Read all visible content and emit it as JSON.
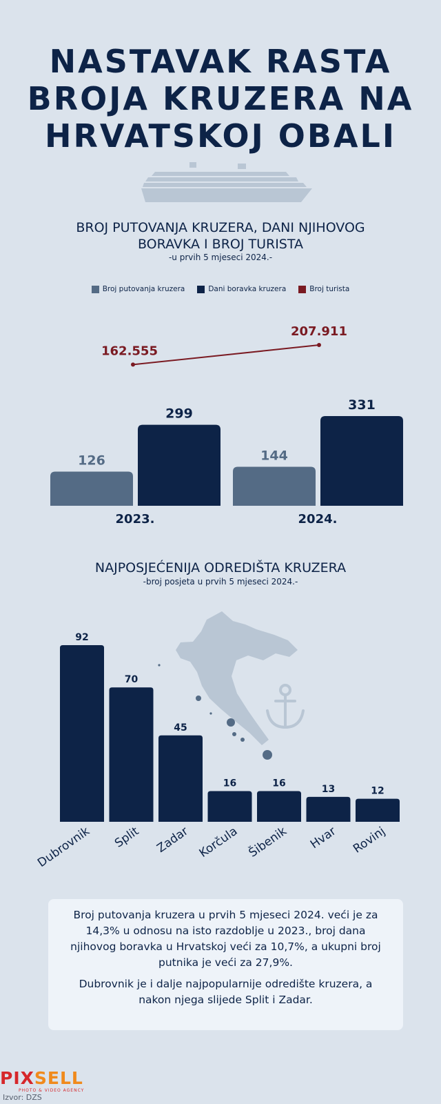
{
  "title": [
    "NASTAVAK RASTA",
    "BROJA KRUZERA NA",
    "HRVATSKOJ OBALI"
  ],
  "chart1": {
    "title_line1": "BROJ PUTOVANJA KRUZERA, DANI NJIHOVOG",
    "title_line2": "BORAVKA I BROJ TURISTA",
    "subtitle": "-u prvih 5 mjeseci 2024.-"
  },
  "chart2": {
    "title": "NAJPOSJEĆENIJA ODREDIŠTA KRUZERA",
    "subtitle": "-broj posjeta u prvih 5 mjeseci 2024.-"
  },
  "chart_data": [
    {
      "type": "bar",
      "categories": [
        "2023.",
        "2024."
      ],
      "series": [
        {
          "name": "Broj putovanja kruzera",
          "values": [
            126,
            144
          ],
          "value_labels": [
            "126",
            "144"
          ],
          "color": "#546b85"
        },
        {
          "name": "Dani boravka kruzera",
          "values": [
            299,
            331
          ],
          "value_labels": [
            "299",
            "331"
          ],
          "color": "#0d2347"
        },
        {
          "name": "Broj turista",
          "values": [
            162555,
            207911
          ],
          "value_labels": [
            "162.555",
            "207.911"
          ],
          "color": "#7a1a22",
          "kind": "line"
        }
      ],
      "legend": "top-center",
      "grid": false
    },
    {
      "type": "bar",
      "categories": [
        "Dubrovnik",
        "Split",
        "Zadar",
        "Korčula",
        "Šibenik",
        "Hvar",
        "Rovinj"
      ],
      "values": [
        92,
        70,
        45,
        16,
        16,
        13,
        12
      ],
      "value_labels": [
        "92",
        "70",
        "45",
        "16",
        "16",
        "13",
        "12"
      ],
      "color": "#0d2347",
      "grid": false
    }
  ],
  "note": {
    "p1": "Broj putovanja kruzera u prvih 5 mjeseci 2024. veći je za 14,3% u odnosu na isto razdoblje u 2023., broj dana njihovog boravka u Hrvatskoj veći za 10,7%, a ukupni broj putnika je veći za 27,9%.",
    "p2": "Dubrovnik je i dalje najpopularnije odredište kruzera, a nakon njega slijede Split i Zadar."
  },
  "logo": {
    "part1": "PIX",
    "part2": "SELL",
    "tagline": "PHOTO & VIDEO AGENCY"
  },
  "source": "Izvor: DZS",
  "icons": {
    "ship": "cruise-ship-icon",
    "map": "croatia-map-icon",
    "anchor": "anchor-icon"
  },
  "colors": {
    "background": "#dbe3ec",
    "navy": "#0d2347",
    "slate": "#546b85",
    "maroon": "#7a1a22",
    "light": "#b9c6d4"
  }
}
